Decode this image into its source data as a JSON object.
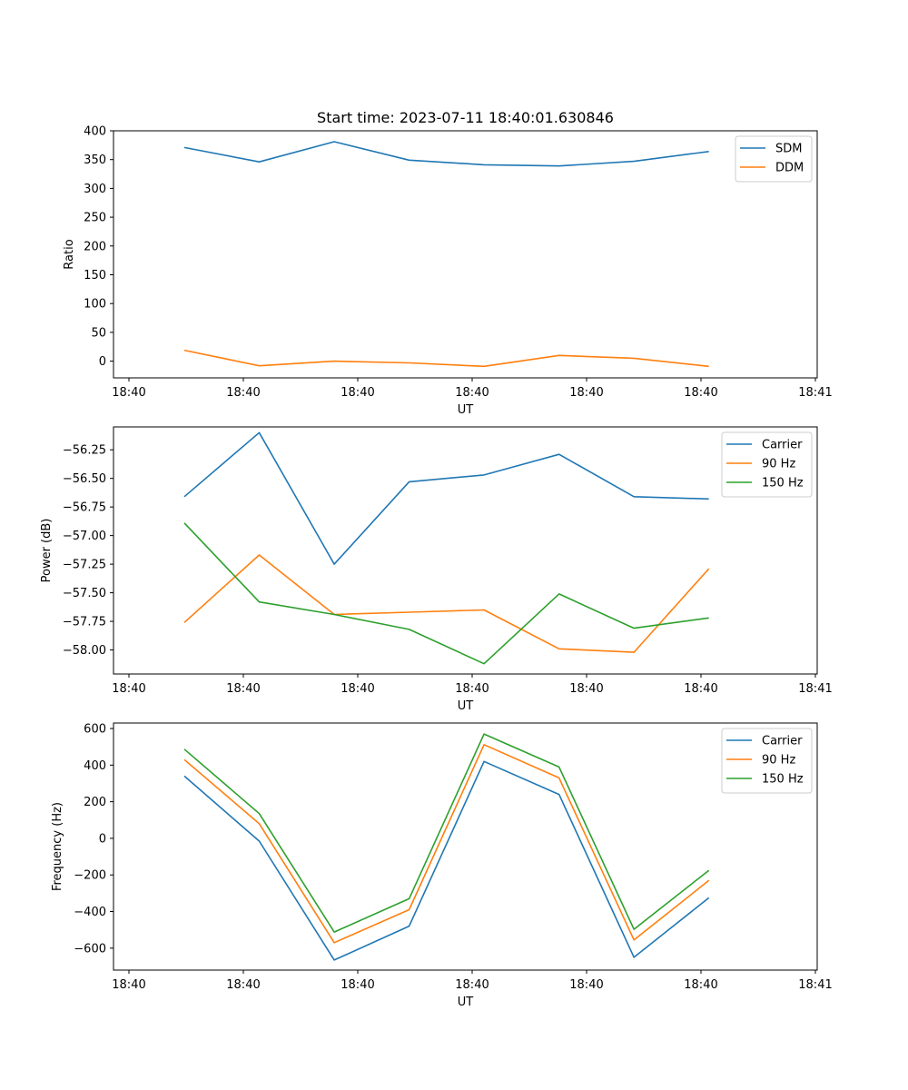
{
  "chart_data": [
    {
      "type": "line",
      "title": "Start time: 2023-07-11 18:40:01.630846",
      "xlabel": "UT",
      "ylabel": "Ratio",
      "x_ticks": [
        "18:40",
        "18:40",
        "18:40",
        "18:40",
        "18:40",
        "18:40",
        "18:41"
      ],
      "y_ticks": [
        "0",
        "50",
        "100",
        "150",
        "200",
        "250",
        "300",
        "350",
        "400"
      ],
      "ylim": [
        -29,
        400
      ],
      "grid": false,
      "legend": "top-right",
      "series": [
        {
          "name": "SDM",
          "color": "#1f77b4",
          "values": [
            371,
            346,
            381,
            349,
            341,
            339,
            347,
            364
          ]
        },
        {
          "name": "DDM",
          "color": "#ff7f0e",
          "values": [
            19,
            -8,
            0,
            -3,
            -9,
            10,
            5,
            -9
          ]
        }
      ]
    },
    {
      "type": "line",
      "title": "",
      "xlabel": "UT",
      "ylabel": "Power (dB)",
      "x_ticks": [
        "18:40",
        "18:40",
        "18:40",
        "18:40",
        "18:40",
        "18:40",
        "18:41"
      ],
      "y_ticks": [
        "−56.25",
        "−56.50",
        "−56.75",
        "−57.00",
        "−57.25",
        "−57.50",
        "−57.75",
        "−58.00"
      ],
      "ylim": [
        -58.21,
        -56.05
      ],
      "grid": false,
      "legend": "top-right",
      "series": [
        {
          "name": "Carrier",
          "color": "#1f77b4",
          "values": [
            -56.66,
            -56.1,
            -57.25,
            -56.53,
            -56.47,
            -56.29,
            -56.66,
            -56.68
          ]
        },
        {
          "name": "90 Hz",
          "color": "#ff7f0e",
          "values": [
            -57.76,
            -57.17,
            -57.69,
            -57.67,
            -57.65,
            -57.99,
            -58.02,
            -57.29
          ]
        },
        {
          "name": "150 Hz",
          "color": "#2ca02c",
          "values": [
            -56.89,
            -57.58,
            -57.69,
            -57.82,
            -58.12,
            -57.51,
            -57.81,
            -57.72
          ]
        }
      ]
    },
    {
      "type": "line",
      "title": "",
      "xlabel": "UT",
      "ylabel": "Frequency (Hz)",
      "x_ticks": [
        "18:40",
        "18:40",
        "18:40",
        "18:40",
        "18:40",
        "18:40",
        "18:41"
      ],
      "y_ticks": [
        "600",
        "400",
        "200",
        "0",
        "−200",
        "−400",
        "−600"
      ],
      "ylim": [
        -720,
        630
      ],
      "grid": false,
      "legend": "top-right",
      "series": [
        {
          "name": "Carrier",
          "color": "#1f77b4",
          "values": [
            340,
            -15,
            -665,
            -480,
            420,
            240,
            -650,
            -325
          ]
        },
        {
          "name": "90 Hz",
          "color": "#ff7f0e",
          "values": [
            430,
            80,
            -570,
            -390,
            512,
            330,
            -555,
            -230
          ]
        },
        {
          "name": "150 Hz",
          "color": "#2ca02c",
          "values": [
            487,
            135,
            -512,
            -330,
            570,
            390,
            -497,
            -175
          ]
        }
      ]
    }
  ]
}
